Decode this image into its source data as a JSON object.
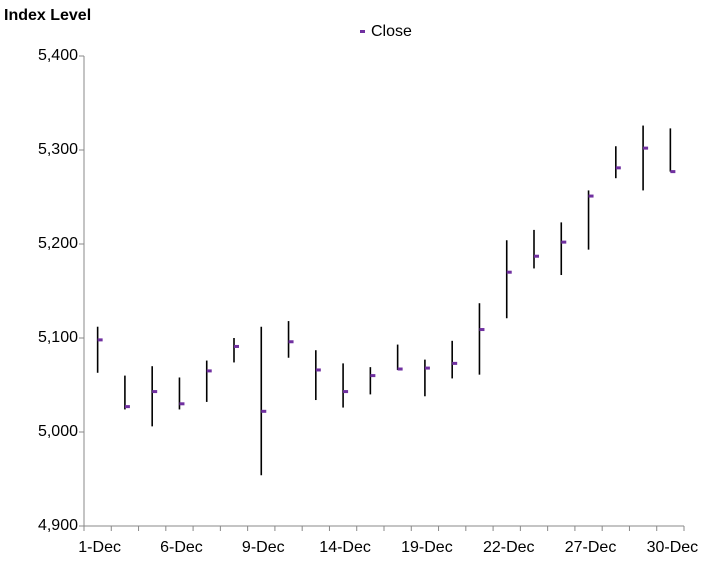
{
  "chart_data": {
    "type": "hlc",
    "title": "Index Level",
    "categories": [
      "1-Dec",
      null,
      null,
      "6-Dec",
      null,
      null,
      "9-Dec",
      null,
      null,
      "14-Dec",
      null,
      null,
      "19-Dec",
      null,
      null,
      "22-Dec",
      null,
      null,
      "27-Dec",
      null,
      null,
      "30-Dec"
    ],
    "high": [
      5112,
      5060,
      5070,
      5058,
      5076,
      5100,
      5112,
      5118,
      5087,
      5073,
      5069,
      5093,
      5077,
      5097,
      5137,
      5204,
      5215,
      5223,
      5257,
      5304,
      5326,
      5323
    ],
    "low": [
      5063,
      5024,
      5006,
      5024,
      5032,
      5074,
      4954,
      5079,
      5034,
      5026,
      5040,
      5066,
      5038,
      5057,
      5061,
      5121,
      5174,
      5167,
      5194,
      5270,
      5257,
      5277
    ],
    "range_color": "#000000",
    "series": [
      {
        "name": "Close",
        "color": "#7030a0",
        "values": [
          5098,
          5027,
          5043,
          5030,
          5065,
          5091,
          5022,
          5096,
          5066,
          5043,
          5060,
          5067,
          5068,
          5073,
          5109,
          5170,
          5187,
          5202,
          5251,
          5281,
          5302,
          5277
        ]
      }
    ],
    "ylim": [
      4900,
      5400
    ],
    "yticks": [
      {
        "value": 4900,
        "label": "4,900"
      },
      {
        "value": 5000,
        "label": "5,000"
      },
      {
        "value": 5100,
        "label": "5,100"
      },
      {
        "value": 5200,
        "label": "5,200"
      },
      {
        "value": 5300,
        "label": "5,300"
      },
      {
        "value": 5400,
        "label": "5,400"
      }
    ],
    "grid": false,
    "legend": "top"
  }
}
